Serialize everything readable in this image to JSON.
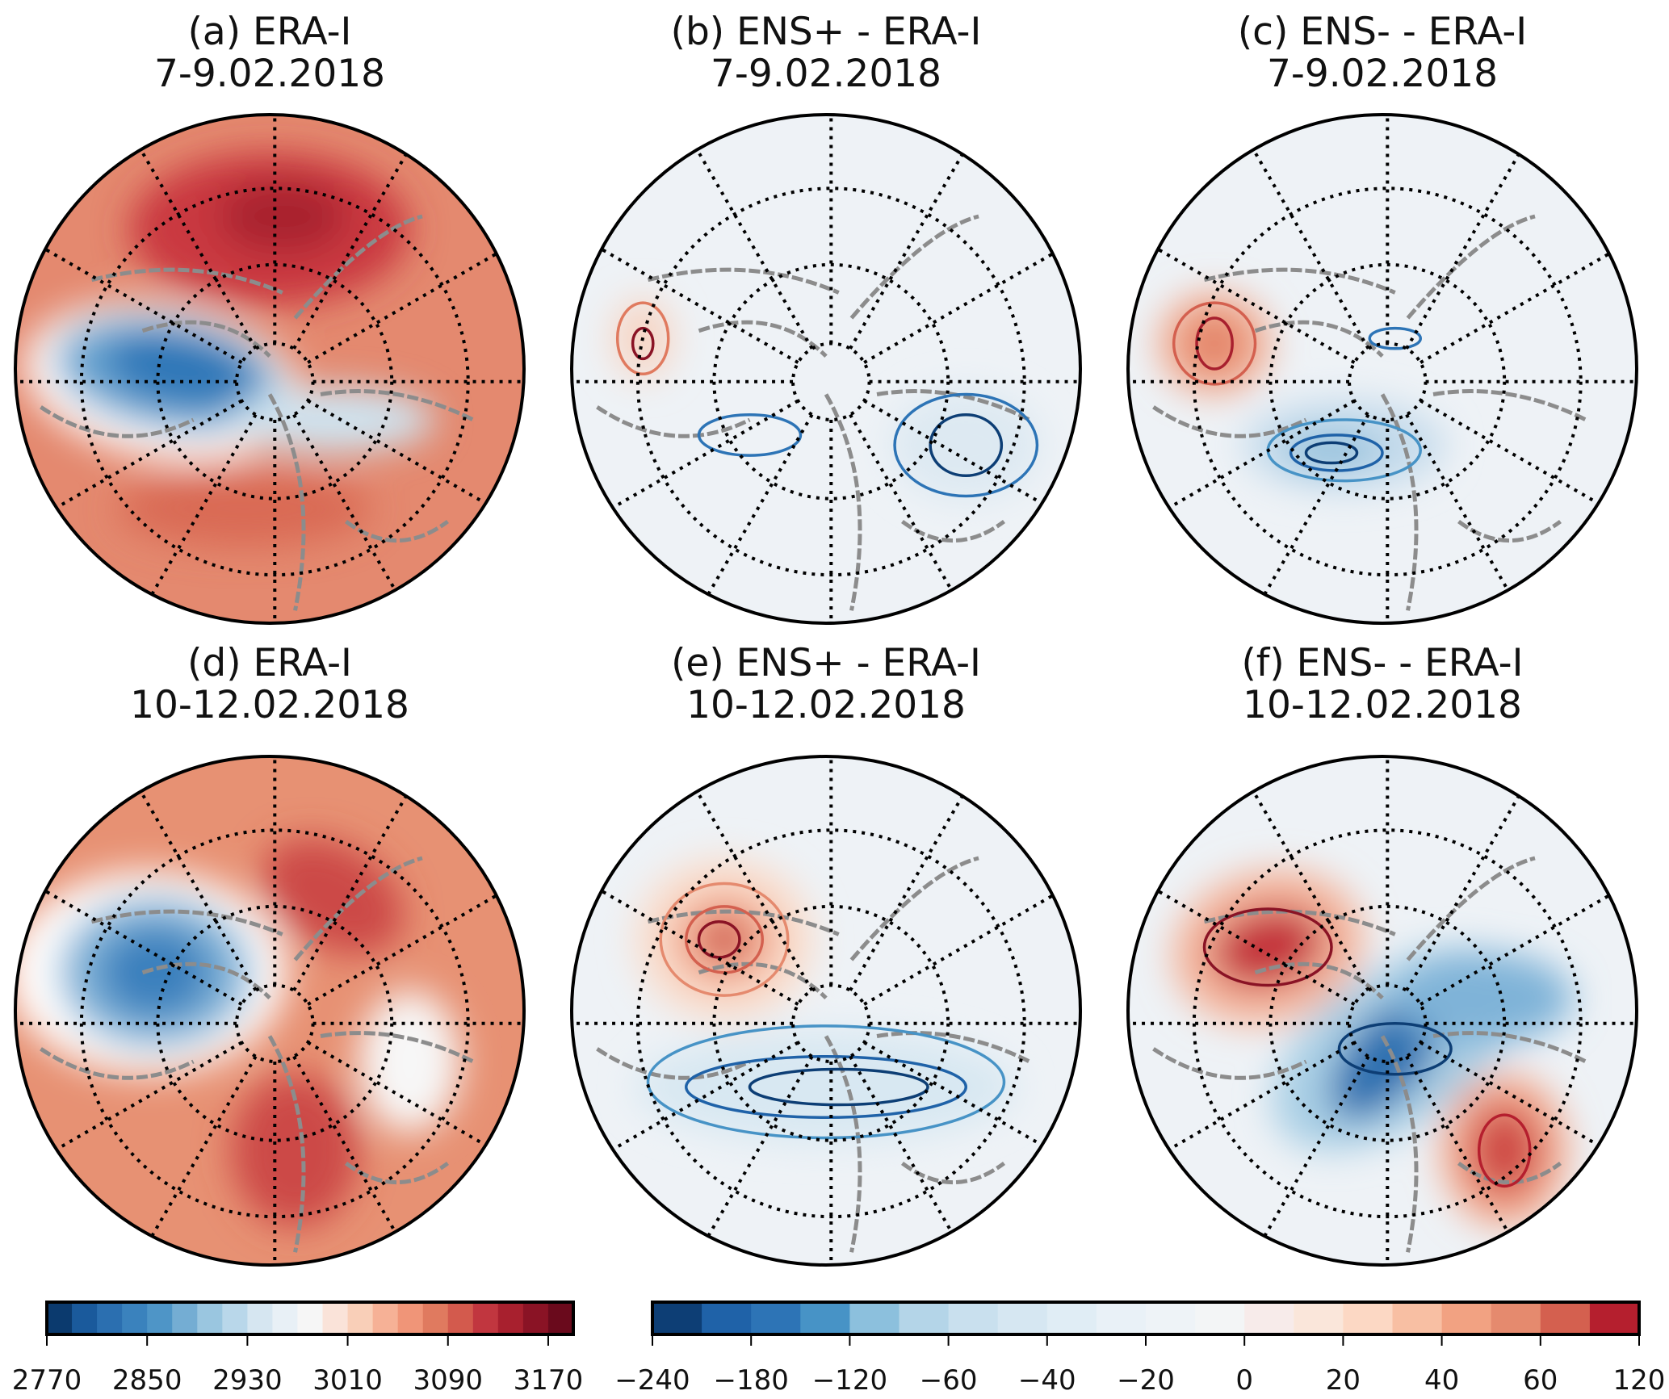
{
  "panels": [
    {
      "label": "(a)  ERA-I",
      "date": "7-9.02.2018",
      "kind": "field",
      "bg": "#e4896f"
    },
    {
      "label": "(b)  ENS+ - ERA-I",
      "date": "7-9.02.2018",
      "kind": "diff",
      "bg": "#eef2f6"
    },
    {
      "label": "(c)  ENS- - ERA-I",
      "date": "7-9.02.2018",
      "kind": "diff",
      "bg": "#eef2f6"
    },
    {
      "label": "(d)  ERA-I",
      "date": "10-12.02.2018",
      "kind": "field",
      "bg": "#e79173"
    },
    {
      "label": "(e)  ENS+ - ERA-I",
      "date": "10-12.02.2018",
      "kind": "diff",
      "bg": "#eef2f6"
    },
    {
      "label": "(f)  ENS- - ERA-I",
      "date": "10-12.02.2018",
      "kind": "diff",
      "bg": "#eef2f6"
    }
  ],
  "colorbars": [
    {
      "name": "geopotential-height",
      "ticks": [
        "2770",
        "2850",
        "2930",
        "3010",
        "3090",
        "3170"
      ],
      "tick_values": [
        2770,
        2850,
        2930,
        3010,
        3090,
        3170
      ],
      "range": [
        2770,
        3190
      ],
      "colors": [
        "#0b3a6e",
        "#1a5a9c",
        "#2b6fb0",
        "#3a82bd",
        "#4e95c7",
        "#74add3",
        "#9ac6e0",
        "#b9d7ea",
        "#d6e6f1",
        "#e8f0f6",
        "#f6f6f6",
        "#fae3d9",
        "#f9cfb8",
        "#f6b196",
        "#f09578",
        "#e07a5f",
        "#d35a4d",
        "#c1363f",
        "#a8202e",
        "#8a1325",
        "#6a0a1c"
      ]
    },
    {
      "name": "height-difference",
      "ticks": [
        "−240",
        "−180",
        "−120",
        "−60",
        "−40",
        "−20",
        "0",
        "20",
        "40",
        "60",
        "120"
      ],
      "colors": [
        "#0d3e75",
        "#1f62a8",
        "#2d74b6",
        "#4793c6",
        "#8cc0dd",
        "#b4d5e8",
        "#c9e0ee",
        "#d6e7f2",
        "#e0edf5",
        "#e9f1f7",
        "#eef3f7",
        "#f3f5f6",
        "#f7ebea",
        "#fae6da",
        "#fcd8c4",
        "#f8bfa3",
        "#f2a282",
        "#e58a6e",
        "#d4604f",
        "#b51f2e"
      ]
    }
  ]
}
